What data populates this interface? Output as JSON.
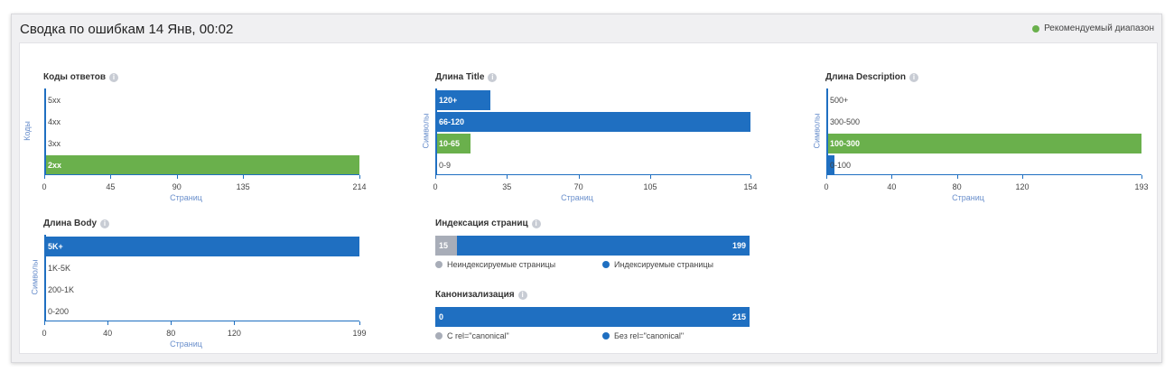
{
  "header": {
    "title": "Сводка по ошибкам 14 Янв, 00:02",
    "legend_label": "Рекомендуемый диапазон",
    "legend_color": "#6ab04c"
  },
  "colors": {
    "blue": "#1f6fc1",
    "green": "#6ab04c",
    "gray": "#a8adb8"
  },
  "chart_data": [
    {
      "id": "codes",
      "type": "bar",
      "title": "Коды ответов",
      "ylabel": "Коды",
      "xlabel": "Страниц",
      "categories": [
        "5xx",
        "4xx",
        "3xx",
        "2xx"
      ],
      "values": [
        0,
        0,
        0,
        214
      ],
      "colors": [
        "blue",
        "blue",
        "blue",
        "green"
      ],
      "xticks": [
        0,
        45,
        90,
        135,
        214
      ],
      "xlim": [
        0,
        214
      ]
    },
    {
      "id": "title_len",
      "type": "bar",
      "title": "Длина Title",
      "ylabel": "Символы",
      "xlabel": "Страниц",
      "categories": [
        "120+",
        "66-120",
        "10-65",
        "0-9"
      ],
      "values": [
        27,
        154,
        17,
        0
      ],
      "colors": [
        "blue",
        "blue",
        "green",
        "blue"
      ],
      "xticks": [
        0,
        35,
        70,
        105,
        154
      ],
      "xlim": [
        0,
        154
      ]
    },
    {
      "id": "desc_len",
      "type": "bar",
      "title": "Длина Description",
      "ylabel": "Символы",
      "xlabel": "Страниц",
      "categories": [
        "500+",
        "300-500",
        "100-300",
        "0-100"
      ],
      "values": [
        0,
        0,
        193,
        5
      ],
      "colors": [
        "blue",
        "blue",
        "green",
        "blue"
      ],
      "xticks": [
        0,
        40,
        80,
        120,
        193
      ],
      "xlim": [
        0,
        193
      ]
    },
    {
      "id": "body_len",
      "type": "bar",
      "title": "Длина Body",
      "ylabel": "Символы",
      "xlabel": "Страниц",
      "categories": [
        "5K+",
        "1K-5K",
        "200-1K",
        "0-200"
      ],
      "values": [
        199,
        0,
        0,
        0
      ],
      "colors": [
        "blue",
        "blue",
        "blue",
        "blue"
      ],
      "xticks": [
        0,
        40,
        80,
        120,
        199
      ],
      "xlim": [
        0,
        199
      ]
    },
    {
      "id": "indexing",
      "type": "bar",
      "title": "Индексация страниц",
      "stacked": true,
      "series": [
        {
          "name": "Неиндексируемые страницы",
          "value": 15,
          "color": "gray"
        },
        {
          "name": "Индексируемые страницы",
          "value": 199,
          "color": "blue"
        }
      ]
    },
    {
      "id": "canonical",
      "type": "bar",
      "title": "Канонизализация",
      "stacked": true,
      "series": [
        {
          "name": "С rel=\"canonical\"",
          "value": 0,
          "color": "gray"
        },
        {
          "name": "Без rel=\"canonical\"",
          "value": 215,
          "color": "blue"
        }
      ]
    }
  ]
}
